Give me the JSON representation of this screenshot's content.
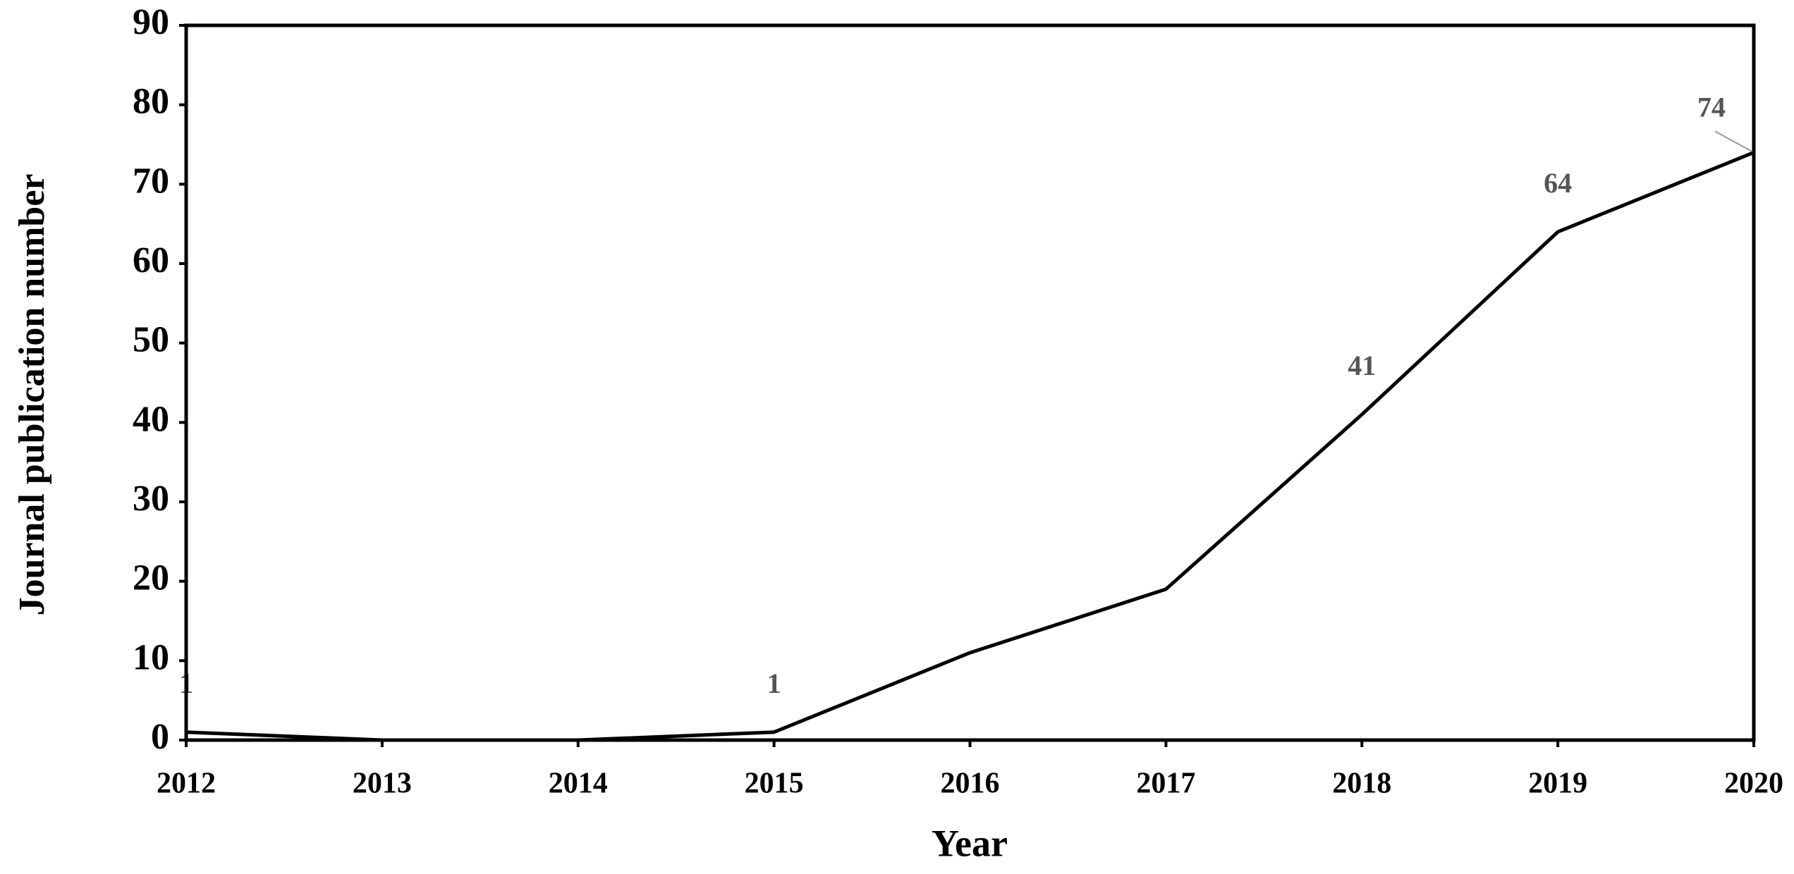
{
  "chart_data": {
    "type": "line",
    "x_label": "Year",
    "y_label": "Journal publication number",
    "categories": [
      "2012",
      "2013",
      "2014",
      "2015",
      "2016",
      "2017",
      "2018",
      "2019",
      "2020"
    ],
    "values": [
      1,
      0,
      0,
      1,
      11,
      19,
      41,
      64,
      74
    ],
    "data_labels": [
      "1",
      null,
      null,
      "1",
      null,
      null,
      "41",
      "64",
      "74"
    ],
    "color": "#000000",
    "ylim": [
      0,
      90
    ],
    "yticks": [
      0,
      10,
      20,
      30,
      40,
      50,
      60,
      70,
      80,
      90
    ],
    "grid": false
  }
}
